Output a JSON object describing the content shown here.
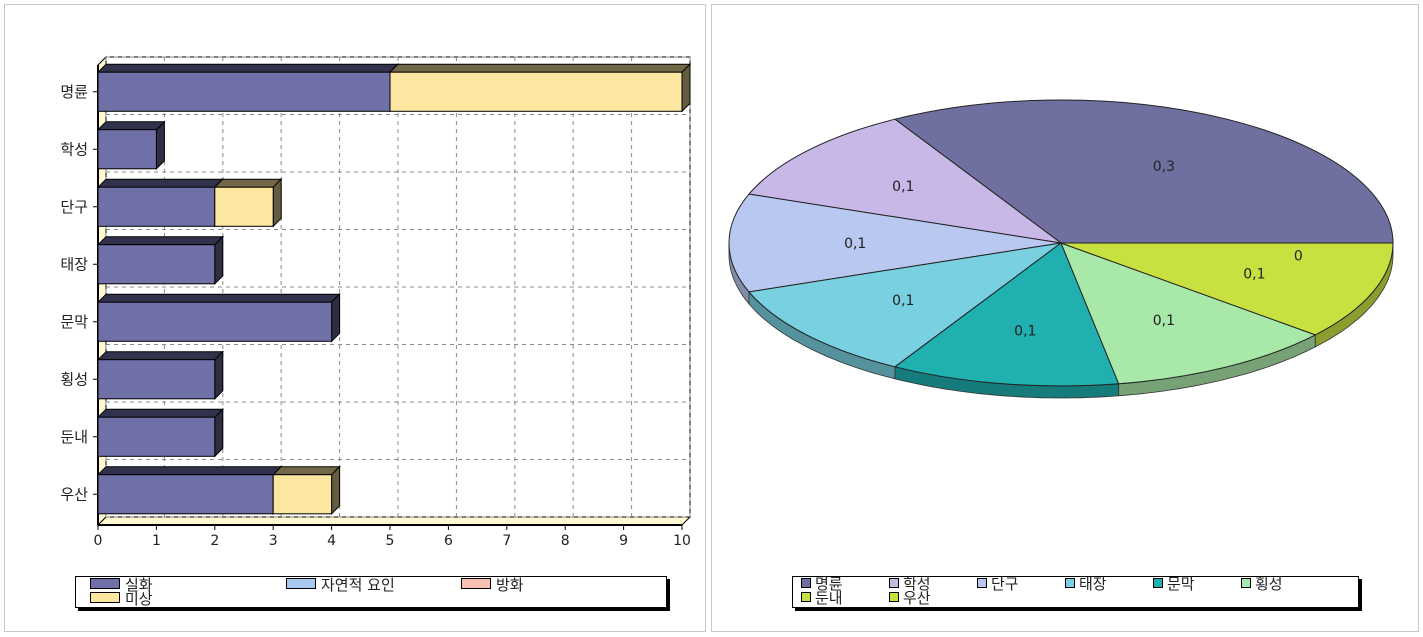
{
  "chart_data": [
    {
      "type": "bar",
      "orientation": "horizontal",
      "stacked": true,
      "categories": [
        "명륜",
        "학성",
        "단구",
        "태장",
        "문막",
        "횡성",
        "둔내",
        "우산"
      ],
      "series": [
        {
          "name": "실화",
          "values": [
            5,
            1,
            2,
            2,
            4,
            2,
            2,
            3
          ],
          "color": "#7070a8"
        },
        {
          "name": "자연적 요인",
          "values": [
            0,
            0,
            0,
            0,
            0,
            0,
            0,
            0
          ],
          "color": "#a8c8f0"
        },
        {
          "name": "방화",
          "values": [
            0,
            0,
            0,
            0,
            0,
            0,
            0,
            0
          ],
          "color": "#f8c0b0"
        },
        {
          "name": "미상",
          "values": [
            5,
            0,
            1,
            0,
            0,
            0,
            0,
            1
          ],
          "color": "#fde6a0"
        }
      ],
      "xlim": [
        0,
        10
      ],
      "xticks": [
        "0",
        "1",
        "2",
        "3",
        "4",
        "5",
        "6",
        "7",
        "8",
        "9",
        "10"
      ],
      "grid": true,
      "legend_position": "bottom"
    },
    {
      "type": "pie",
      "slices": [
        {
          "name": "명륜",
          "value": 0.3,
          "color": "#7070a0"
        },
        {
          "name": "학성",
          "value": 0.1,
          "color": "#c8b8e8"
        },
        {
          "name": "단구",
          "value": 0.1,
          "color": "#b8c8f0"
        },
        {
          "name": "태장",
          "value": 0.1,
          "color": "#78d0e0"
        },
        {
          "name": "문막",
          "value": 0.1,
          "color": "#20b0b0"
        },
        {
          "name": "횡성",
          "value": 0.1,
          "color": "#a8e8a8"
        },
        {
          "name": "둔내",
          "value": 0.1,
          "color": "#c8e040"
        },
        {
          "name": "우산",
          "value": 0,
          "color": "#c8e040"
        }
      ],
      "data_labels": [
        "0,3",
        "0,1",
        "0,1",
        "0,1",
        "0,1",
        "0,1",
        "0,1",
        "0"
      ],
      "legend_position": "bottom"
    }
  ]
}
